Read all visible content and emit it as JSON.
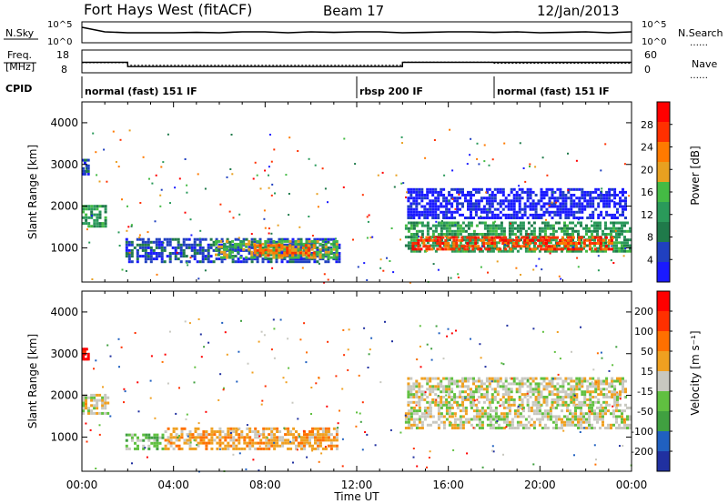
{
  "header": {
    "station": "Fort Hays West (fitACF)",
    "beam": "Beam 17",
    "date": "12/Jan/2013"
  },
  "colors": {
    "power_scale": [
      "#1a1aff",
      "#2040c0",
      "#1f7a4a",
      "#2a9a5a",
      "#44bb44",
      "#e8a020",
      "#ff7a00",
      "#ff3000",
      "#ff0000"
    ],
    "velocity_scale": [
      "#2030a0",
      "#2060c0",
      "#40a040",
      "#60c040",
      "#c8c8c0",
      "#f0a020",
      "#ff7000",
      "#ff3000",
      "#ff0000"
    ]
  },
  "chart_data": [
    {
      "type": "line",
      "name": "noise-sky-search",
      "labels": {
        "left": "N.Sky",
        "right": "N.Search",
        "right_key": "……"
      },
      "left_ticks": [
        "10^5",
        "10^0"
      ],
      "right_ticks": [
        "10^5",
        "10^0"
      ],
      "x": [
        0,
        1,
        2,
        3,
        4,
        5,
        6,
        7,
        8,
        9,
        10,
        11,
        12,
        13,
        14,
        15,
        16,
        17,
        18,
        19,
        20,
        21,
        22,
        23,
        24
      ],
      "series": [
        {
          "values": [
            0.8,
            0.55,
            0.5,
            0.5,
            0.5,
            0.52,
            0.5,
            0.55,
            0.55,
            0.5,
            0.55,
            0.52,
            0.55,
            0.55,
            0.5,
            0.52,
            0.55,
            0.55,
            0.52,
            0.55,
            0.5,
            0.52,
            0.55,
            0.5,
            0.55
          ]
        }
      ]
    },
    {
      "type": "line",
      "name": "frequency-nave",
      "labels": {
        "left_top": "Freq.",
        "left_bottom": "[MHz]",
        "right": "Nave",
        "right_key": "……"
      },
      "left_ticks": [
        "18",
        "8"
      ],
      "right_ticks": [
        "60",
        "0"
      ],
      "series": [
        {
          "name": "Freq",
          "x": [
            0,
            2,
            2,
            14,
            14,
            24
          ],
          "values": [
            12.5,
            12.5,
            10.3,
            10.3,
            12.5,
            12.5
          ]
        },
        {
          "name": "Nave",
          "x": [
            0,
            2,
            2,
            14,
            14,
            18,
            18,
            24
          ],
          "values": [
            26,
            26,
            18,
            18,
            28,
            28,
            24,
            24
          ]
        }
      ]
    },
    {
      "type": "table",
      "name": "cpid",
      "label": "CPID",
      "segments": [
        {
          "start": 0,
          "end": 12,
          "label": "normal (fast) 151 IF"
        },
        {
          "start": 12,
          "end": 18,
          "label": "rbsp 200 IF"
        },
        {
          "start": 18,
          "end": 24,
          "label": "normal (fast) 151 IF"
        }
      ]
    },
    {
      "type": "heatmap",
      "name": "power-panel",
      "ylabel": "Slant Range [km]",
      "ylim": [
        180,
        4500
      ],
      "yticks": [
        "1000",
        "2000",
        "3000",
        "4000"
      ],
      "colorbar": {
        "label": "Power [dB]",
        "ticks": [
          "4",
          "8",
          "12",
          "16",
          "20",
          "24",
          "28"
        ],
        "range": [
          0,
          30
        ]
      },
      "regions": [
        {
          "x0": 0,
          "x1": 1.1,
          "r0": 1550,
          "r1": 2100,
          "level": 3
        },
        {
          "x0": 0,
          "x1": 0.3,
          "r0": 2800,
          "r1": 3200,
          "level": 1
        },
        {
          "x0": 1.9,
          "x1": 11.3,
          "r0": 700,
          "r1": 1300,
          "level": 1
        },
        {
          "x0": 5.8,
          "x1": 11.2,
          "r0": 800,
          "r1": 1250,
          "level": 4
        },
        {
          "x0": 7.5,
          "x1": 10.2,
          "r0": 850,
          "r1": 1150,
          "level": 6
        },
        {
          "x0": 14.1,
          "x1": 24,
          "r0": 950,
          "r1": 1700,
          "level": 3
        },
        {
          "x0": 14.4,
          "x1": 23.2,
          "r0": 1000,
          "r1": 1350,
          "level": 7
        },
        {
          "x0": 14.2,
          "x1": 23.8,
          "r0": 1750,
          "r1": 2500,
          "level": 0
        }
      ]
    },
    {
      "type": "heatmap",
      "name": "velocity-panel",
      "ylabel": "Slant Range [km]",
      "ylim": [
        180,
        4500
      ],
      "yticks": [
        "1000",
        "2000",
        "3000",
        "4000"
      ],
      "colorbar": {
        "label": "Velocity [m s⁻¹]",
        "ticks": [
          "200",
          "100",
          "50",
          "15",
          "-15",
          "-50",
          "-100",
          "-200"
        ]
      },
      "regions": [
        {
          "x0": 0,
          "x1": 1.2,
          "r0": 1600,
          "r1": 2100,
          "level": 4
        },
        {
          "x0": 0,
          "x1": 0.3,
          "r0": 2900,
          "r1": 3200,
          "level": 8
        },
        {
          "x0": 1.9,
          "x1": 3.6,
          "r0": 750,
          "r1": 1150,
          "level": 3
        },
        {
          "x0": 3.6,
          "x1": 11.2,
          "r0": 750,
          "r1": 1300,
          "level": 5
        },
        {
          "x0": 14.1,
          "x1": 24,
          "r0": 1250,
          "r1": 1800,
          "level": 4
        },
        {
          "x0": 14.2,
          "x1": 23.8,
          "r0": 1800,
          "r1": 2500,
          "level": 4
        }
      ]
    }
  ],
  "xaxis": {
    "ticks": [
      "00:00",
      "04:00",
      "08:00",
      "12:00",
      "16:00",
      "20:00",
      "00:00"
    ],
    "label": "Time UT"
  }
}
